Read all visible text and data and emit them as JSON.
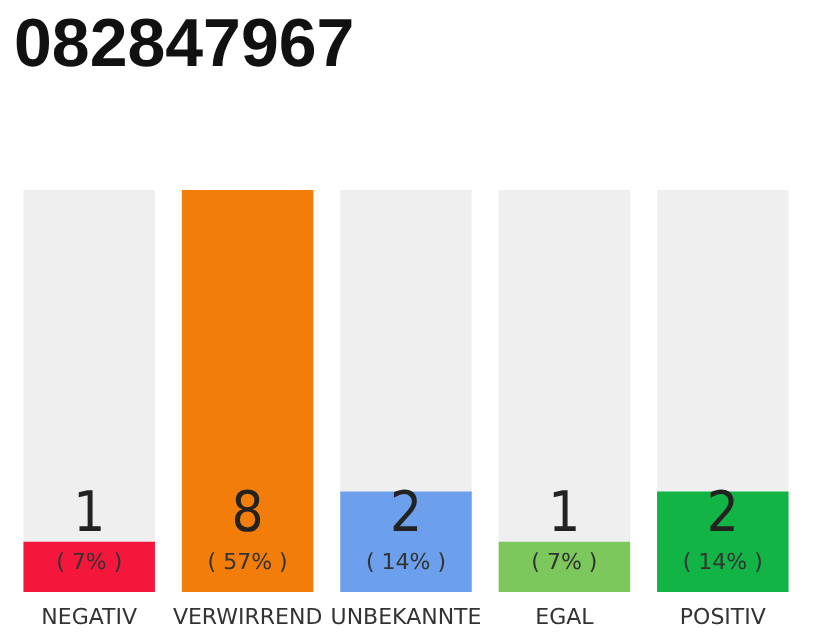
{
  "chart_data": {
    "type": "bar",
    "title": "082847967",
    "categories": [
      "NEGATIV",
      "VERWIRREND",
      "UNBEKANNTE",
      "EGAL",
      "POSITIV"
    ],
    "values": [
      1,
      8,
      2,
      1,
      2
    ],
    "colors": [
      "#f5163c",
      "#f27d0b",
      "#6c9fec",
      "#7cc85c",
      "#12b446"
    ],
    "value_labels": [
      "1\n( 7% )",
      "8\n( 57% )",
      "2\n( 14% )",
      "1\n( 7% )",
      "2\n( 14% )"
    ],
    "ylim": [
      0,
      8
    ],
    "tick_labels": "x"
  }
}
